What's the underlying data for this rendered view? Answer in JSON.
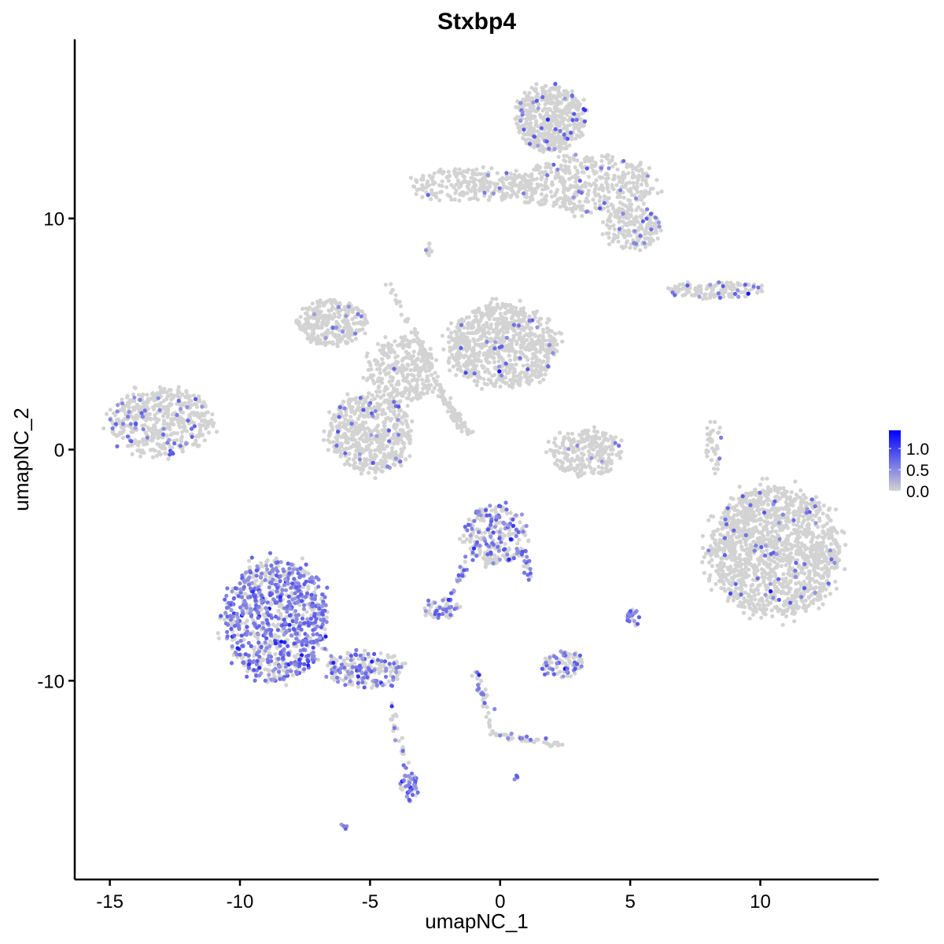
{
  "chart_data": {
    "type": "scatter",
    "title": "Stxbp4",
    "xlabel": "umapNC_1",
    "ylabel": "umapNC_2",
    "xlim": [
      -16.35,
      14.55
    ],
    "ylim": [
      -18.6,
      17.75
    ],
    "x_ticks": [
      -15,
      -10,
      -5,
      0,
      5,
      10
    ],
    "x_tick_labels": [
      "-15",
      "-10",
      "-5",
      "0",
      "5",
      "10"
    ],
    "y_ticks": [
      -10,
      0,
      10
    ],
    "y_tick_labels": [
      "-10",
      "0",
      "10"
    ],
    "grid": false,
    "legend": {
      "placement": "right",
      "type": "colorbar",
      "range": [
        0,
        1.43
      ],
      "ticks": [
        0.0,
        0.5,
        1.0
      ],
      "tick_labels": [
        "0.0",
        "0.5",
        "1.0"
      ],
      "low_color": "#d3d3d3",
      "high_color": "#0000ff"
    },
    "clusters": [
      {
        "center": [
          1.93,
          14.3
        ],
        "radius": [
          1.35,
          1.45
        ],
        "cells": 500,
        "expressing_fraction": 0.06
      },
      {
        "center": [
          3.3,
          11.45
        ],
        "radius": [
          2.6,
          1.2
        ],
        "cells": 450,
        "expressing_fraction": 0.05
      },
      {
        "center": [
          -1.1,
          11.45
        ],
        "radius": [
          2.3,
          0.7
        ],
        "cells": 250,
        "expressing_fraction": 0.03
      },
      {
        "center": [
          5.1,
          9.6
        ],
        "radius": [
          1.05,
          0.95
        ],
        "cells": 200,
        "expressing_fraction": 0.08
      },
      {
        "center": [
          -2.75,
          8.7
        ],
        "radius": [
          0.2,
          0.3
        ],
        "cells": 10,
        "expressing_fraction": 0.2
      },
      {
        "center": [
          8.3,
          6.9
        ],
        "radius": [
          1.8,
          0.35
        ],
        "cells": 120,
        "expressing_fraction": 0.1
      },
      {
        "center": [
          -6.5,
          5.5
        ],
        "radius": [
          1.4,
          1.0
        ],
        "cells": 300,
        "expressing_fraction": 0.04
      },
      {
        "center": [
          0.1,
          4.5
        ],
        "radius": [
          2.1,
          1.8
        ],
        "cells": 800,
        "expressing_fraction": 0.02
      },
      {
        "center": [
          -5.0,
          0.7
        ],
        "radius": [
          1.6,
          1.7
        ],
        "cells": 550,
        "expressing_fraction": 0.04
      },
      {
        "center": [
          -3.8,
          3.4
        ],
        "radius": [
          1.3,
          1.4
        ],
        "cells": 300,
        "expressing_fraction": 0.02
      },
      {
        "center": [
          -13.0,
          1.2
        ],
        "radius": [
          2.0,
          1.5
        ],
        "cells": 500,
        "expressing_fraction": 0.1
      },
      {
        "center": [
          3.3,
          -0.15
        ],
        "radius": [
          1.4,
          1.0
        ],
        "cells": 250,
        "expressing_fraction": 0.02
      },
      {
        "center": [
          8.2,
          0.2
        ],
        "radius": [
          0.35,
          1.2
        ],
        "cells": 40,
        "expressing_fraction": 0.05
      },
      {
        "center": [
          10.55,
          -4.4
        ],
        "radius": [
          2.5,
          2.8
        ],
        "cells": 1400,
        "expressing_fraction": 0.03
      },
      {
        "center": [
          -0.2,
          -3.7
        ],
        "radius": [
          1.2,
          1.3
        ],
        "cells": 260,
        "expressing_fraction": 0.3
      },
      {
        "center": [
          -8.6,
          -7.4
        ],
        "radius": [
          2.0,
          2.6
        ],
        "cells": 900,
        "expressing_fraction": 0.55
      },
      {
        "center": [
          -5.2,
          -9.5
        ],
        "radius": [
          1.5,
          0.8
        ],
        "cells": 200,
        "expressing_fraction": 0.4
      },
      {
        "center": [
          -2.3,
          -6.85
        ],
        "radius": [
          0.7,
          0.45
        ],
        "cells": 60,
        "expressing_fraction": 0.4
      },
      {
        "center": [
          2.4,
          -9.3
        ],
        "radius": [
          0.8,
          0.6
        ],
        "cells": 90,
        "expressing_fraction": 0.4
      },
      {
        "center": [
          5.1,
          -7.3
        ],
        "radius": [
          0.25,
          0.4
        ],
        "cells": 25,
        "expressing_fraction": 0.7
      },
      {
        "center": [
          -3.45,
          -14.6
        ],
        "radius": [
          0.4,
          0.6
        ],
        "cells": 45,
        "expressing_fraction": 0.6
      },
      {
        "center": [
          -6.0,
          -16.3
        ],
        "radius": [
          0.15,
          0.1
        ],
        "cells": 6,
        "expressing_fraction": 0.8
      },
      {
        "center": [
          0.6,
          -14.2
        ],
        "radius": [
          0.1,
          0.1
        ],
        "cells": 4,
        "expressing_fraction": 0.7
      }
    ],
    "strands": [
      {
        "from": [
          -0.9,
          -9.6
        ],
        "to": [
          -0.3,
          -12.3
        ],
        "cells": 40,
        "expressing_fraction": 0.2
      },
      {
        "from": [
          -0.3,
          -12.3
        ],
        "to": [
          2.4,
          -12.8
        ],
        "cells": 50,
        "expressing_fraction": 0.15
      },
      {
        "from": [
          -4.2,
          -10.9
        ],
        "to": [
          -3.5,
          -14.3
        ],
        "cells": 30,
        "expressing_fraction": 0.3
      },
      {
        "from": [
          -4.3,
          7.2
        ],
        "to": [
          -1.4,
          0.7
        ],
        "cells": 90,
        "expressing_fraction": 0.0
      },
      {
        "from": [
          -2.3,
          2.4
        ],
        "to": [
          -1.1,
          0.7
        ],
        "cells": 40,
        "expressing_fraction": 0.0
      },
      {
        "from": [
          -1.1,
          -4.4
        ],
        "to": [
          -2.0,
          -6.6
        ],
        "cells": 25,
        "expressing_fraction": 0.4
      },
      {
        "from": [
          0.8,
          -4.3
        ],
        "to": [
          1.2,
          -5.6
        ],
        "cells": 20,
        "expressing_fraction": 0.5
      },
      {
        "from": [
          7.6,
          6.9
        ],
        "to": [
          6.5,
          7.1
        ],
        "cells": 15,
        "expressing_fraction": 0.0
      },
      {
        "from": [
          9.9,
          -2.5
        ],
        "to": [
          7.9,
          -4.6
        ],
        "cells": 30,
        "expressing_fraction": 0.1
      }
    ]
  }
}
